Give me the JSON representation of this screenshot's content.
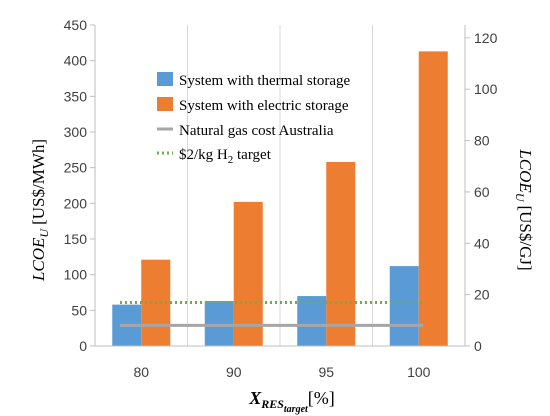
{
  "chart_data": {
    "type": "bar",
    "categories": [
      "80",
      "90",
      "95",
      "100"
    ],
    "series": [
      {
        "name": "System with thermal storage",
        "color": "#5b9bd5",
        "values": [
          58,
          63,
          70,
          112
        ]
      },
      {
        "name": "System with electric storage",
        "color": "#ed7d31",
        "values": [
          121,
          202,
          258,
          413
        ]
      }
    ],
    "reference_lines": [
      {
        "name": "Natural gas cost Australia",
        "color": "#a6a6a6",
        "style": "solid",
        "value": 29
      },
      {
        "name": "$2/kg H2 target",
        "name_parts": [
          "$2/kg H",
          "2",
          " target"
        ],
        "color": "#70ad47",
        "style": "dotted",
        "value": 61
      }
    ],
    "ylabel_left": {
      "main": "LCOE",
      "sub": "U",
      "unit": "[US$/MWh]"
    },
    "ylabel_right": {
      "main": "LCOE",
      "sub": "U",
      "unit": "[US$/GJ]"
    },
    "xlabel": {
      "main": "X",
      "sub": "RES",
      "subsub": "target",
      "unit": "[%]"
    },
    "ylim_left": [
      0,
      450
    ],
    "yticks_left": [
      0,
      50,
      100,
      150,
      200,
      250,
      300,
      350,
      400,
      450
    ],
    "ylim_right": [
      0,
      125
    ],
    "yticks_right": [
      0,
      20,
      40,
      60,
      80,
      100,
      120
    ],
    "grid": "vertical-category-dividers",
    "legend": "top-center"
  }
}
